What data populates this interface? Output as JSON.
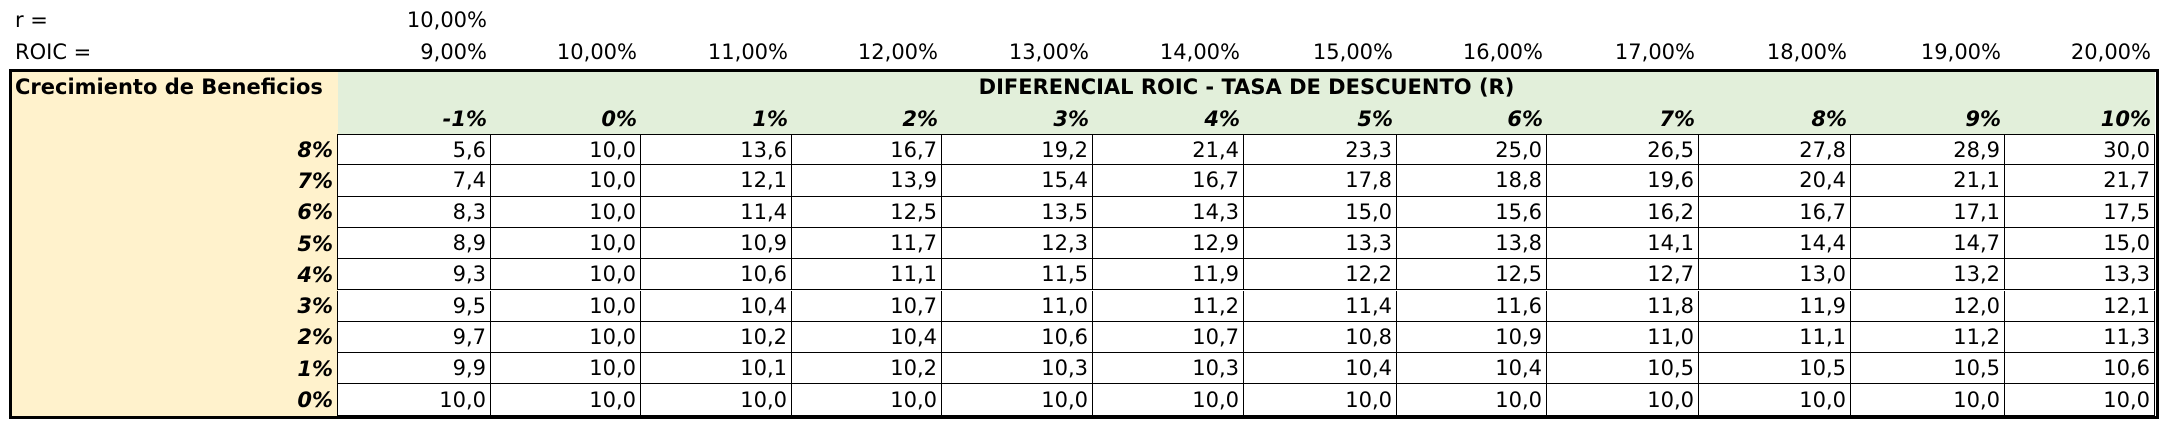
{
  "top": {
    "r_label": "r =",
    "r_value": "10,00%",
    "roic_label": "ROIC =",
    "roic_values": [
      "9,00%",
      "10,00%",
      "11,00%",
      "12,00%",
      "13,00%",
      "14,00%",
      "15,00%",
      "16,00%",
      "17,00%",
      "18,00%",
      "19,00%",
      "20,00%"
    ]
  },
  "table": {
    "corner": "Crecimiento de Beneficios",
    "header": "DIFERENCIAL ROIC - TASA DE DESCUENTO (R)",
    "columns": [
      "-1%",
      "0%",
      "1%",
      "2%",
      "3%",
      "4%",
      "5%",
      "6%",
      "7%",
      "8%",
      "9%",
      "10%"
    ],
    "rows": [
      {
        "label": "8%",
        "values": [
          "5,6",
          "10,0",
          "13,6",
          "16,7",
          "19,2",
          "21,4",
          "23,3",
          "25,0",
          "26,5",
          "27,8",
          "28,9",
          "30,0"
        ]
      },
      {
        "label": "7%",
        "values": [
          "7,4",
          "10,0",
          "12,1",
          "13,9",
          "15,4",
          "16,7",
          "17,8",
          "18,8",
          "19,6",
          "20,4",
          "21,1",
          "21,7"
        ]
      },
      {
        "label": "6%",
        "values": [
          "8,3",
          "10,0",
          "11,4",
          "12,5",
          "13,5",
          "14,3",
          "15,0",
          "15,6",
          "16,2",
          "16,7",
          "17,1",
          "17,5"
        ]
      },
      {
        "label": "5%",
        "values": [
          "8,9",
          "10,0",
          "10,9",
          "11,7",
          "12,3",
          "12,9",
          "13,3",
          "13,8",
          "14,1",
          "14,4",
          "14,7",
          "15,0"
        ]
      },
      {
        "label": "4%",
        "values": [
          "9,3",
          "10,0",
          "10,6",
          "11,1",
          "11,5",
          "11,9",
          "12,2",
          "12,5",
          "12,7",
          "13,0",
          "13,2",
          "13,3"
        ]
      },
      {
        "label": "3%",
        "values": [
          "9,5",
          "10,0",
          "10,4",
          "10,7",
          "11,0",
          "11,2",
          "11,4",
          "11,6",
          "11,8",
          "11,9",
          "12,0",
          "12,1"
        ]
      },
      {
        "label": "2%",
        "values": [
          "9,7",
          "10,0",
          "10,2",
          "10,4",
          "10,6",
          "10,7",
          "10,8",
          "10,9",
          "11,0",
          "11,1",
          "11,2",
          "11,3"
        ]
      },
      {
        "label": "1%",
        "values": [
          "9,9",
          "10,0",
          "10,1",
          "10,2",
          "10,3",
          "10,3",
          "10,4",
          "10,4",
          "10,5",
          "10,5",
          "10,5",
          "10,6"
        ]
      },
      {
        "label": "0%",
        "values": [
          "10,0",
          "10,0",
          "10,0",
          "10,0",
          "10,0",
          "10,0",
          "10,0",
          "10,0",
          "10,0",
          "10,0",
          "10,0",
          "10,0"
        ]
      }
    ]
  }
}
